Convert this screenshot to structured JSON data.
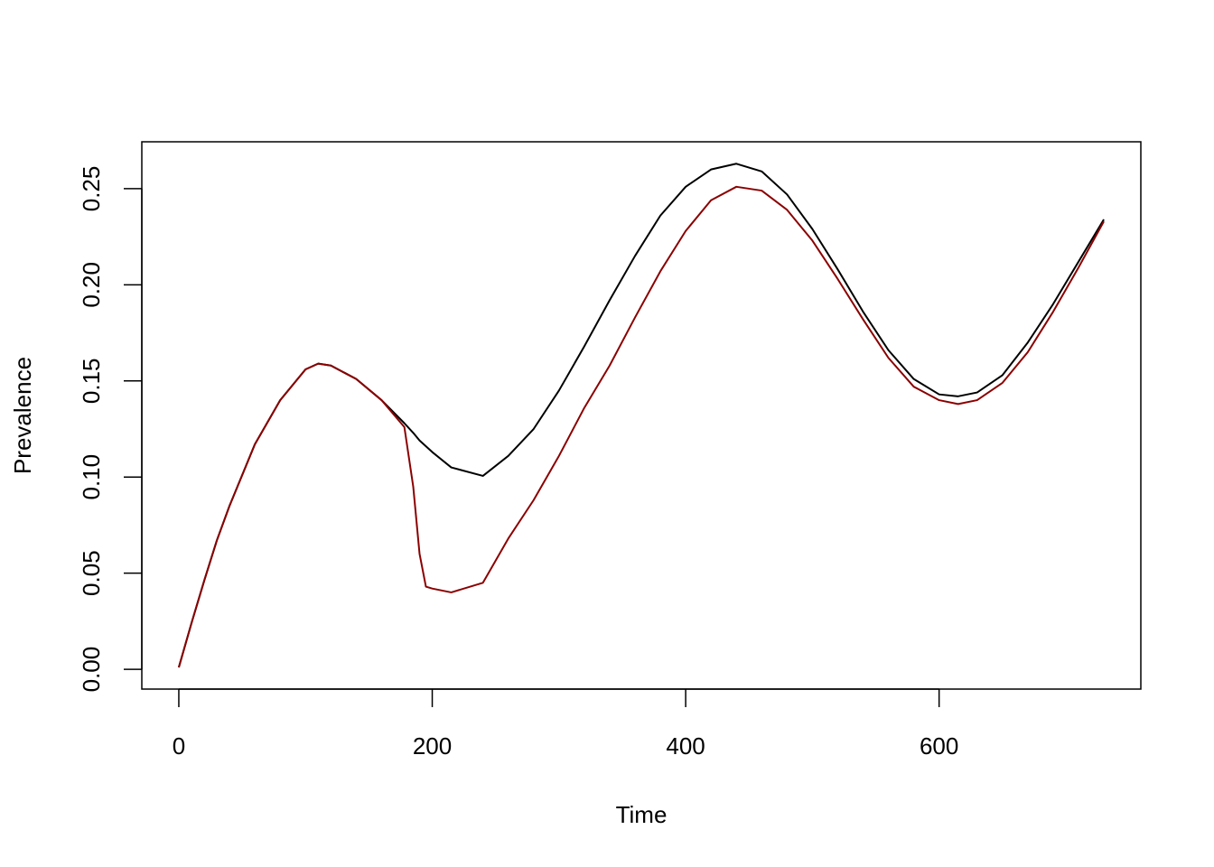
{
  "chart_data": {
    "type": "line",
    "x_label": "Time",
    "y_label": "Prevalence",
    "x": [
      0,
      10,
      20,
      30,
      40,
      60,
      80,
      100,
      110,
      120,
      140,
      160,
      178,
      185,
      190,
      195,
      200,
      215,
      240,
      260,
      280,
      300,
      320,
      340,
      360,
      380,
      400,
      420,
      440,
      460,
      480,
      500,
      520,
      540,
      560,
      580,
      600,
      615,
      630,
      650,
      670,
      690,
      710,
      730
    ],
    "series": [
      {
        "color": "#000000",
        "values": [
          0.001,
          0.024,
          0.046,
          0.067,
          0.085,
          0.117,
          0.14,
          0.156,
          0.159,
          0.158,
          0.151,
          0.14,
          0.128,
          0.123,
          0.119,
          0.116,
          0.113,
          0.105,
          0.1006,
          0.111,
          0.125,
          0.145,
          0.168,
          0.192,
          0.215,
          0.236,
          0.251,
          0.26,
          0.263,
          0.259,
          0.247,
          0.229,
          0.208,
          0.186,
          0.166,
          0.151,
          0.143,
          0.142,
          0.144,
          0.153,
          0.17,
          0.19,
          0.212,
          0.234
        ]
      },
      {
        "color": "#8b0000",
        "values": [
          0.001,
          0.024,
          0.046,
          0.067,
          0.085,
          0.117,
          0.14,
          0.156,
          0.159,
          0.158,
          0.151,
          0.14,
          0.126,
          0.095,
          0.06,
          0.043,
          0.042,
          0.04,
          0.045,
          0.068,
          0.088,
          0.111,
          0.136,
          0.158,
          0.183,
          0.207,
          0.228,
          0.244,
          0.251,
          0.249,
          0.239,
          0.223,
          0.203,
          0.182,
          0.162,
          0.147,
          0.14,
          0.138,
          0.14,
          0.149,
          0.165,
          0.186,
          0.209,
          0.233
        ]
      }
    ],
    "xlim": [
      -29.2,
      759.2
    ],
    "ylim": [
      -0.0103,
      0.2744
    ],
    "xticks": [
      0,
      200,
      400,
      600
    ],
    "yticks": [
      {
        "value": 0,
        "label": "0.00"
      },
      {
        "value": 0.05,
        "label": "0.05"
      },
      {
        "value": 0.1,
        "label": "0.10"
      },
      {
        "value": 0.15,
        "label": "0.15"
      },
      {
        "value": 0.2,
        "label": "0.20"
      },
      {
        "value": 0.25,
        "label": "0.25"
      }
    ]
  }
}
